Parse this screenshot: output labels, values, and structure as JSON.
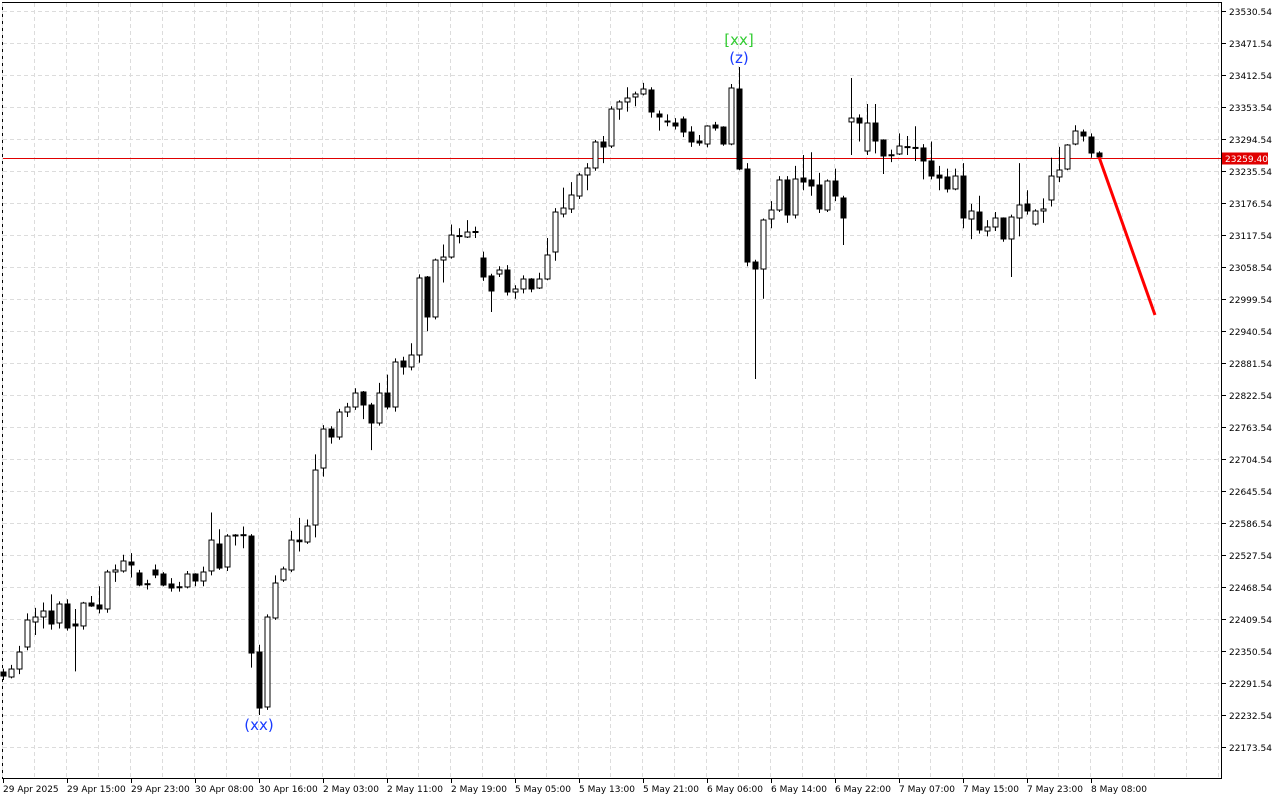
{
  "chart_data": {
    "type": "candlestick",
    "title": "",
    "y_ticks": [
      23530.54,
      23471.54,
      23412.54,
      23353.54,
      23294.54,
      23235.54,
      23176.54,
      23117.54,
      23058.54,
      22999.54,
      22940.54,
      22881.54,
      22822.54,
      22763.54,
      22704.54,
      22645.54,
      22586.54,
      22527.54,
      22468.54,
      22409.54,
      22350.54,
      22291.54,
      22232.54,
      22173.54
    ],
    "ylim": [
      22150,
      23540
    ],
    "x_ticks": [
      "29 Apr 2025",
      "29 Apr 15:00",
      "29 Apr 23:00",
      "30 Apr 08:00",
      "30 Apr 16:00",
      "2 May 03:00",
      "2 May 11:00",
      "2 May 19:00",
      "5 May 05:00",
      "5 May 13:00",
      "5 May 21:00",
      "6 May 06:00",
      "6 May 14:00",
      "6 May 22:00",
      "7 May 07:00",
      "7 May 15:00",
      "7 May 23:00",
      "8 May 08:00"
    ],
    "x_tick_every_bars": 8,
    "grid": true,
    "current_price": "23259.40",
    "current_price_value": 23259.4,
    "colors": {
      "bull_fill": "#ffffff",
      "bear_fill": "#000000",
      "wick": "#000000",
      "price_line": "#e00000",
      "forecast": "#ff0000",
      "label_blue": "#1a3cff",
      "label_green": "#33cc33",
      "grid": "#dcdcdc"
    },
    "candles_ohlc": [
      [
        22311.8,
        22318,
        22297,
        22304.4
      ],
      [
        22302.6,
        22325,
        22300,
        22317.3
      ],
      [
        22317.3,
        22360,
        22308,
        22348.7
      ],
      [
        22357.9,
        22420,
        22352,
        22407.7
      ],
      [
        22404.0,
        22430,
        22380,
        22413.2
      ],
      [
        22413.2,
        22440,
        22392,
        22424.3
      ],
      [
        22424.3,
        22455,
        22390,
        22400.3
      ],
      [
        22402.2,
        22442,
        22392,
        22437.2
      ],
      [
        22437.2,
        22446,
        22388,
        22393.0
      ],
      [
        22400.3,
        22428,
        22313,
        22396.7
      ],
      [
        22396.7,
        22441,
        22390,
        22439.0
      ],
      [
        22439.0,
        22452,
        22432,
        22433.5
      ],
      [
        22435.4,
        22470,
        22420,
        22428.0
      ],
      [
        22428.0,
        22500,
        22421,
        22496.2
      ],
      [
        22496.2,
        22510,
        22478,
        22499.9
      ],
      [
        22498.1,
        22528,
        22495,
        22516.5
      ],
      [
        22514.6,
        22531,
        22486,
        22509.1
      ],
      [
        22494.4,
        22500,
        22470,
        22472.2
      ],
      [
        22474.6,
        22482,
        22464,
        22474.1
      ],
      [
        22499.9,
        22510,
        22485,
        22490.7
      ],
      [
        22492.5,
        22496,
        22470,
        22472.2
      ],
      [
        22474.1,
        22485,
        22460,
        22466.7
      ],
      [
        22468.6,
        22478,
        22460,
        22469.0
      ],
      [
        22468.6,
        22498,
        22466,
        22492.5
      ],
      [
        22492.5,
        22494,
        22470,
        22479.6
      ],
      [
        22479.6,
        22506,
        22470,
        22496.2
      ],
      [
        22498.1,
        22606,
        22490,
        22555.1
      ],
      [
        22547.8,
        22575,
        22500,
        22503.5
      ],
      [
        22505.4,
        22566,
        22498,
        22562.5
      ],
      [
        22563.0,
        22566,
        22545,
        22564.4
      ],
      [
        22565.0,
        22580,
        22540,
        22564.0
      ],
      [
        22562.5,
        22566,
        22320,
        22346.8
      ],
      [
        22348.7,
        22362,
        22232.5,
        22245.4
      ],
      [
        22247.3,
        22418,
        22242,
        22413.2
      ],
      [
        22411.4,
        22490,
        22408,
        22475.9
      ],
      [
        22481.5,
        22506,
        22478,
        22501.7
      ],
      [
        22499.9,
        22572,
        22496,
        22555.1
      ],
      [
        22555.0,
        22596,
        22534,
        22552.0
      ],
      [
        22551.5,
        22593,
        22548,
        22581.0
      ],
      [
        22582.8,
        22713,
        22560,
        22684.2
      ],
      [
        22687.9,
        22767,
        22672,
        22759.8
      ],
      [
        22759.8,
        22765,
        22733,
        22745.1
      ],
      [
        22745.1,
        22797,
        22740,
        22791.2
      ],
      [
        22791.2,
        22808,
        22782,
        22800.4
      ],
      [
        22800.4,
        22835,
        22795,
        22826.2
      ],
      [
        22828.1,
        22830,
        22778,
        22804.1
      ],
      [
        22804.1,
        22808,
        22721,
        22770.9
      ],
      [
        22770.9,
        22845,
        22766,
        22826.2
      ],
      [
        22826.2,
        22860,
        22796,
        22800.4
      ],
      [
        22800.4,
        22890,
        22792,
        22883.4
      ],
      [
        22885.2,
        22893,
        22860,
        22874.2
      ],
      [
        22874.2,
        22918,
        22868,
        22896.3
      ],
      [
        22896.3,
        23045,
        22882,
        23038.3
      ],
      [
        23040.1,
        23042,
        22940,
        22966.4
      ],
      [
        22966.4,
        23074,
        22962,
        23071.4
      ],
      [
        23071.4,
        23100,
        23030,
        23076.9
      ],
      [
        23076.9,
        23137,
        23074,
        23117.4
      ],
      [
        23116.5,
        23130,
        23102,
        23115.7
      ],
      [
        23113.8,
        23145,
        23112,
        23123.0
      ],
      [
        23124.0,
        23133,
        23112,
        23123.0
      ],
      [
        23075.1,
        23087,
        23033,
        23040.1
      ],
      [
        23042.0,
        23046,
        22975.6,
        23014.3
      ],
      [
        23045.6,
        23060,
        23040,
        23053.0
      ],
      [
        23053.0,
        23062,
        23006,
        23012.4
      ],
      [
        23012.4,
        23025,
        23000,
        23018.0
      ],
      [
        23018.0,
        23043,
        23010,
        23036.4
      ],
      [
        23036.4,
        23038,
        23012,
        23018.0
      ],
      [
        23019.8,
        23048,
        23018,
        23036.4
      ],
      [
        23036.4,
        23112,
        23034,
        23080.7
      ],
      [
        23086.2,
        23167,
        23070,
        23159.9
      ],
      [
        23156.3,
        23205,
        23150,
        23167.3
      ],
      [
        23165.5,
        23215,
        23158,
        23191.3
      ],
      [
        23189.4,
        23232,
        23184,
        23228.2
      ],
      [
        23228.2,
        23250,
        23200,
        23241.1
      ],
      [
        23241.1,
        23293,
        23236,
        23289.0
      ],
      [
        23289.0,
        23300,
        23250,
        23279.8
      ],
      [
        23281.6,
        23355,
        23278,
        23349.8
      ],
      [
        23349.8,
        23366,
        23330,
        23362.8
      ],
      [
        23362.8,
        23390,
        23345,
        23370.1
      ],
      [
        23372.0,
        23382,
        23355,
        23377.5
      ],
      [
        23377.5,
        23398,
        23375,
        23386.7
      ],
      [
        23384.9,
        23390,
        23334,
        23344.3
      ],
      [
        23340.6,
        23347,
        23310,
        23335.1
      ],
      [
        23327.7,
        23340,
        23318,
        23325.9
      ],
      [
        23324.0,
        23333,
        23312,
        23318.5
      ],
      [
        23331.4,
        23336,
        23298,
        23307.4
      ],
      [
        23307.4,
        23318,
        23280,
        23289.0
      ],
      [
        23290.8,
        23302,
        23282,
        23287.2
      ],
      [
        23285.3,
        23320,
        23279,
        23318.5
      ],
      [
        23320.3,
        23326,
        23310,
        23314.8
      ],
      [
        23316.6,
        23318,
        23282,
        23285.3
      ],
      [
        23285.3,
        23396,
        23283,
        23388.6
      ],
      [
        23386.7,
        23427.3,
        23237,
        23239.2
      ],
      [
        23239.2,
        23250,
        23060,
        23067.7
      ],
      [
        23067.7,
        23072,
        22852.0,
        23054.8
      ],
      [
        23054.8,
        23148,
        23000,
        23145.2
      ],
      [
        23147.0,
        23180,
        23130,
        23163.6
      ],
      [
        23163.6,
        23226,
        23160,
        23219.0
      ],
      [
        23219.0,
        23226,
        23140,
        23154.4
      ],
      [
        23154.4,
        23245,
        23148,
        23220.8
      ],
      [
        23222.6,
        23265,
        23200,
        23215.2
      ],
      [
        23219.0,
        23270,
        23190,
        23207.9
      ],
      [
        23209.7,
        23232,
        23158,
        23165.5
      ],
      [
        23163.6,
        23220,
        23160,
        23217.1
      ],
      [
        23217.1,
        23240,
        23180,
        23189.4
      ],
      [
        23185.8,
        23190,
        23099.1,
        23148.9
      ],
      [
        23326.0,
        23407.0,
        23265.0,
        23333.2
      ],
      [
        23333.2,
        23340,
        23290,
        23324.0
      ],
      [
        23272.4,
        23359,
        23265,
        23324.0
      ],
      [
        23324.0,
        23359.1,
        23268,
        23290.8
      ],
      [
        23292.7,
        23294,
        23230.0,
        23263.2
      ],
      [
        23265.5,
        23275,
        23252,
        23265.0
      ],
      [
        23266.9,
        23305,
        23265,
        23281.6
      ],
      [
        23280.5,
        23300,
        23265,
        23279.8
      ],
      [
        23279.0,
        23318,
        23254,
        23278.0
      ],
      [
        23278.0,
        23285,
        23220,
        23254.0
      ],
      [
        23254.0,
        23290,
        23220,
        23226.3
      ],
      [
        23228.0,
        23245,
        23200,
        23222.6
      ],
      [
        23224.5,
        23240,
        23196,
        23202.4
      ],
      [
        23202.4,
        23240,
        23200,
        23226.3
      ],
      [
        23226.3,
        23250,
        23130,
        23148.9
      ],
      [
        23147.0,
        23175,
        23110,
        23161.8
      ],
      [
        23159.9,
        23190,
        23120,
        23126.8
      ],
      [
        23124.9,
        23145,
        23115,
        23132.3
      ],
      [
        23132.3,
        23160,
        23125,
        23148.9
      ],
      [
        23148.9,
        23150,
        23105,
        23110.2
      ],
      [
        23110.2,
        23155,
        23040,
        23150.7
      ],
      [
        23148.9,
        23250,
        23115,
        23172.9
      ],
      [
        23174.7,
        23200,
        23155,
        23161.8
      ],
      [
        23137.8,
        23165,
        23135,
        23161.8
      ],
      [
        23161.8,
        23185,
        23140,
        23165.5
      ],
      [
        23182.1,
        23260,
        23170,
        23226.3
      ],
      [
        23224.5,
        23280,
        23215,
        23237.4
      ],
      [
        23239.2,
        23285,
        23237,
        23283.5
      ],
      [
        23285.3,
        23320,
        23283,
        23309.3
      ],
      [
        23307.4,
        23312,
        23290,
        23300.1
      ],
      [
        23298.2,
        23305,
        23260,
        23268.7
      ],
      [
        23268.7,
        23272,
        23258,
        23261.4
      ]
    ],
    "forecast": {
      "from_price": 23261.4,
      "to_price": 22970,
      "bars_ahead": 7
    },
    "annotations": [
      {
        "text": "(xx)",
        "bar": 32,
        "anchor": "low",
        "color": "label_blue"
      },
      {
        "text": "(z)",
        "bar": 92,
        "anchor": "high",
        "color": "label_blue"
      },
      {
        "text": "[xx]",
        "bar": 92,
        "anchor": "high2",
        "color": "label_green"
      }
    ]
  }
}
